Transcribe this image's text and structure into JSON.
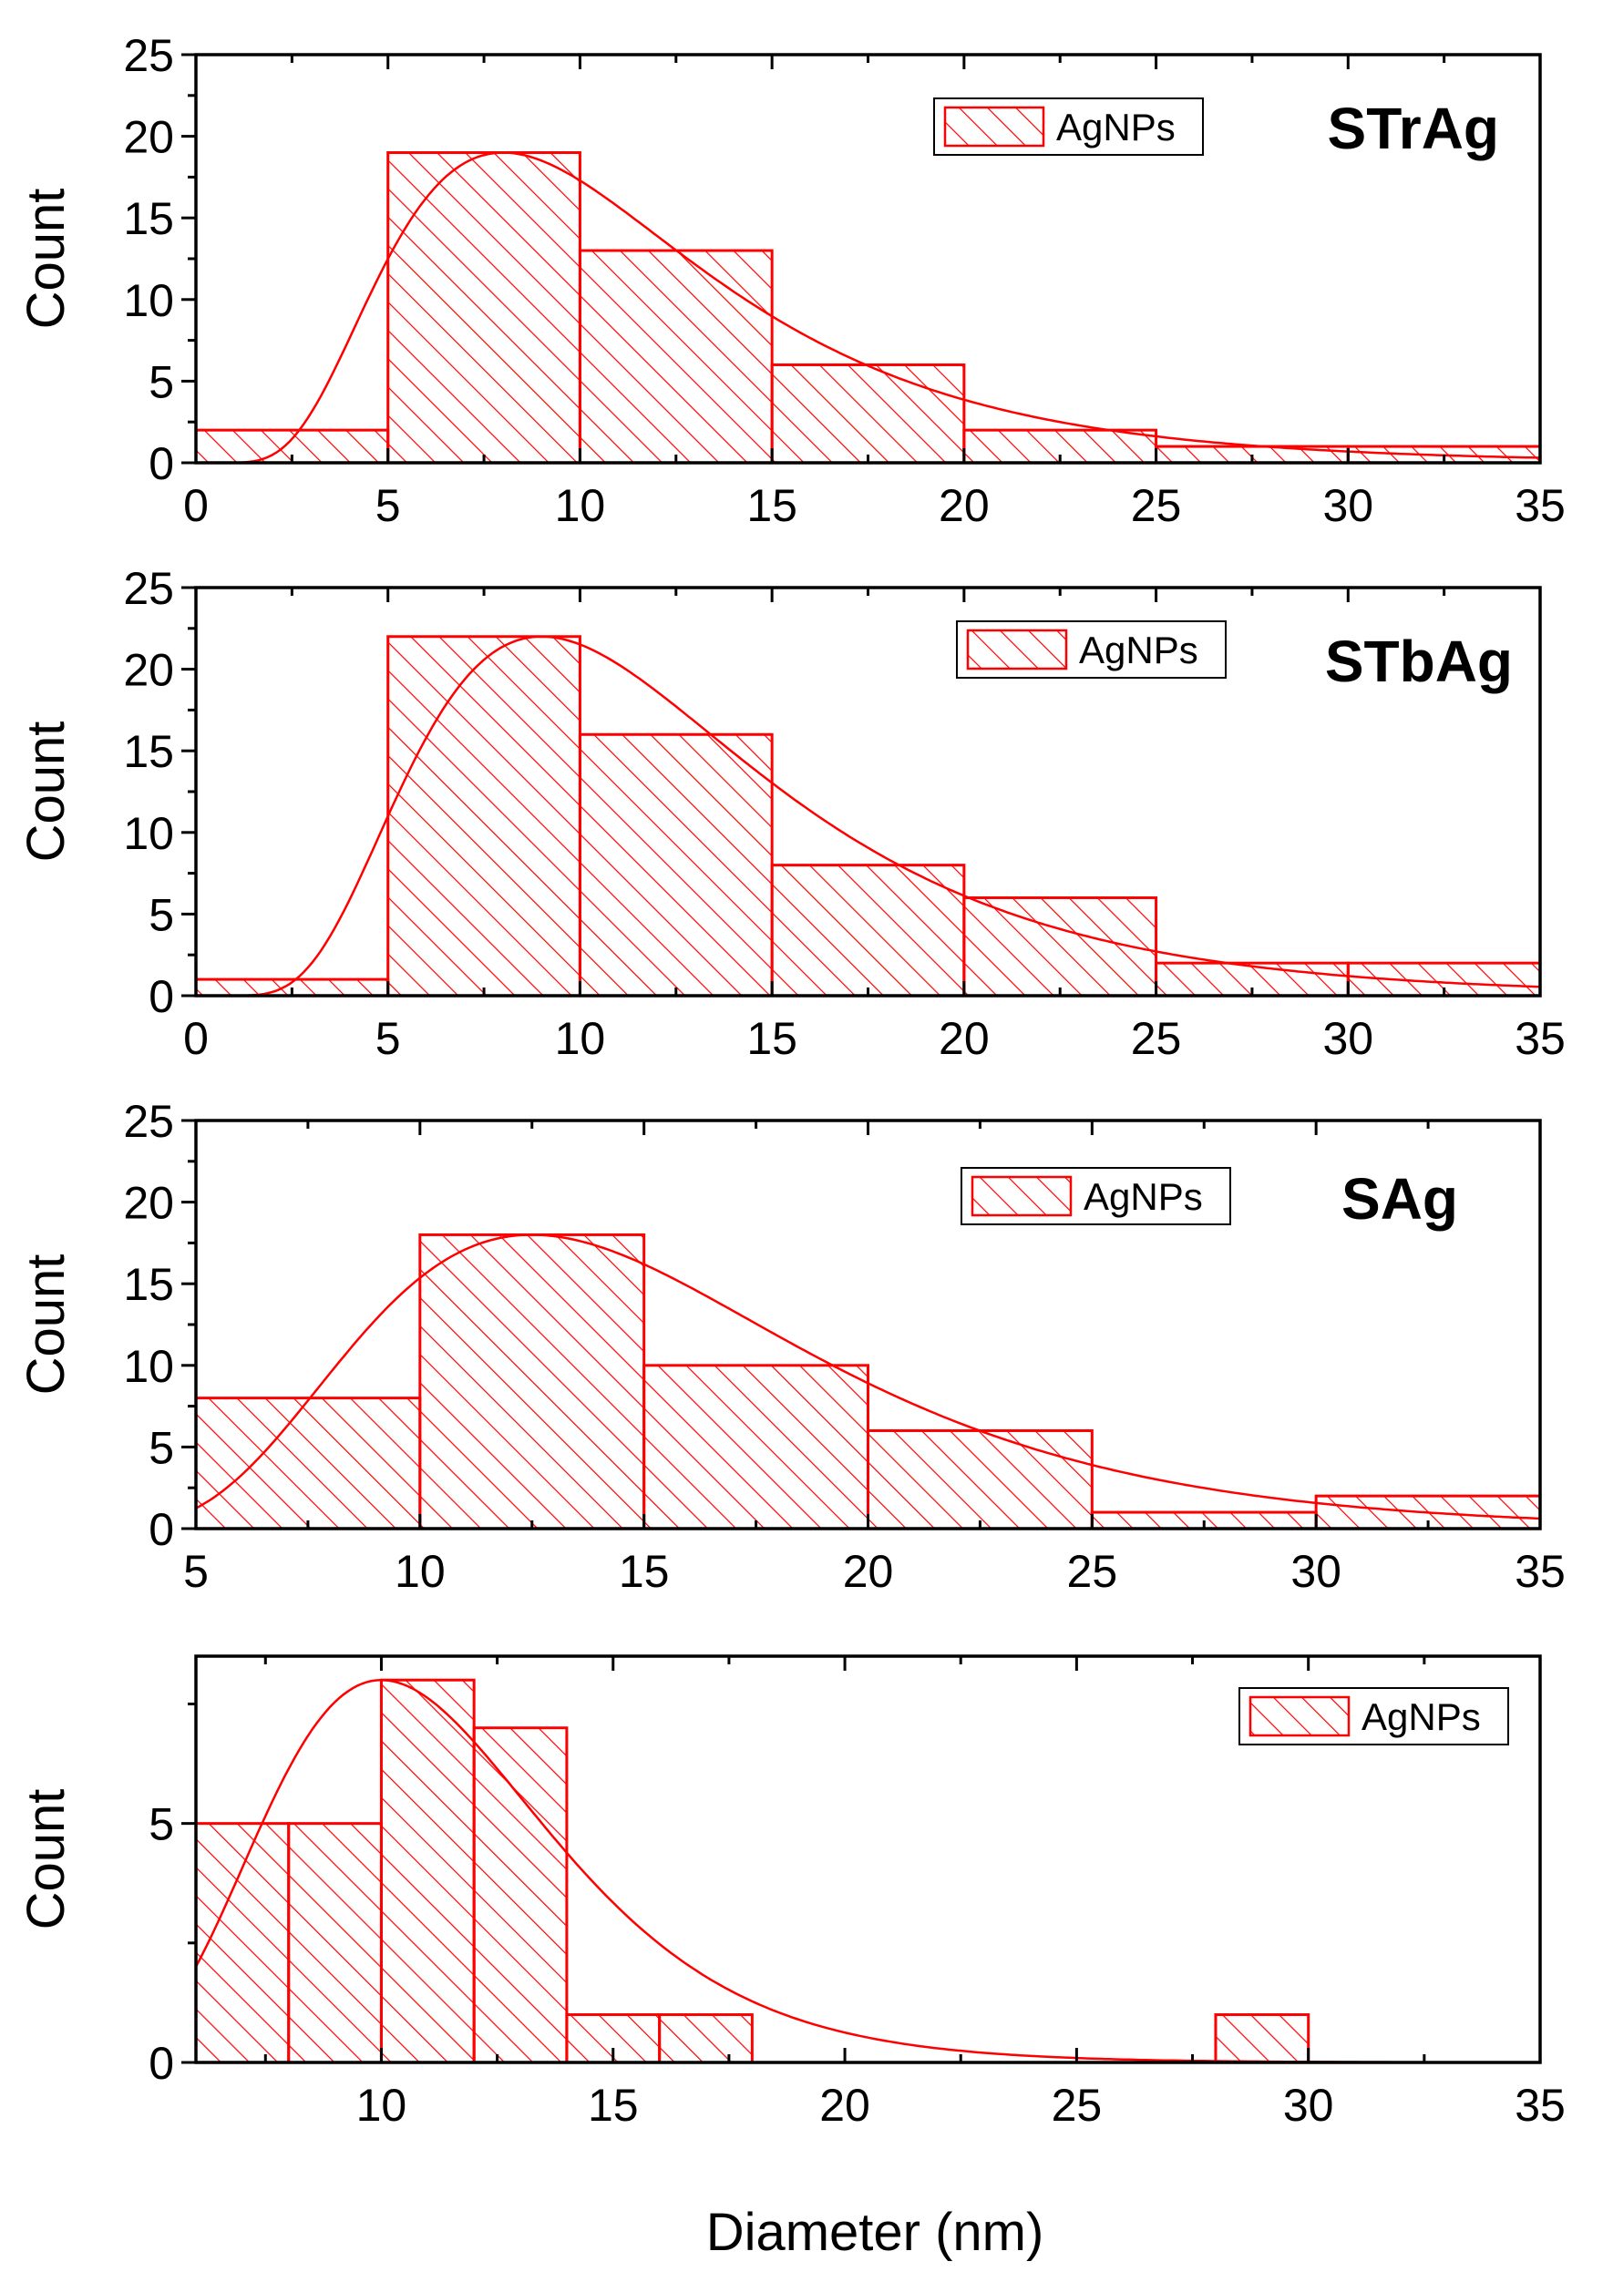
{
  "figure": {
    "xlabel": "Diameter (nm)"
  },
  "chart_data": [
    {
      "type": "bar",
      "title": "STrAg",
      "legend": "AgNPs",
      "legend_position": "top-right",
      "xlabel": "",
      "ylabel": "Count",
      "xlim": [
        0,
        35
      ],
      "ylim": [
        0,
        25
      ],
      "x_ticks": [
        0,
        5,
        10,
        15,
        20,
        25,
        30,
        35
      ],
      "y_ticks": [
        0,
        5,
        10,
        15,
        20,
        25
      ],
      "bins": [
        [
          0,
          5
        ],
        [
          5,
          10
        ],
        [
          10,
          15
        ],
        [
          15,
          20
        ],
        [
          20,
          25
        ],
        [
          25,
          30
        ],
        [
          30,
          35
        ]
      ],
      "values": [
        2,
        19,
        13,
        6,
        2,
        1,
        1
      ],
      "fit": {
        "type": "lognormal",
        "peak_x": 8,
        "peak_y": 19
      }
    },
    {
      "type": "bar",
      "title": "STbAg",
      "legend": "AgNPs",
      "legend_position": "top-right",
      "xlabel": "",
      "ylabel": "Count",
      "xlim": [
        0,
        35
      ],
      "ylim": [
        0,
        25
      ],
      "x_ticks": [
        0,
        5,
        10,
        15,
        20,
        25,
        30,
        35
      ],
      "y_ticks": [
        0,
        5,
        10,
        15,
        20,
        25
      ],
      "bins": [
        [
          0,
          5
        ],
        [
          5,
          10
        ],
        [
          10,
          15
        ],
        [
          15,
          20
        ],
        [
          20,
          25
        ],
        [
          25,
          30
        ],
        [
          30,
          35
        ]
      ],
      "values": [
        1,
        22,
        16,
        8,
        6,
        2,
        2
      ],
      "fit": {
        "type": "lognormal",
        "peak_x": 9,
        "peak_y": 22
      }
    },
    {
      "type": "bar",
      "title": "SAg",
      "legend": "AgNPs",
      "legend_position": "top-right",
      "xlabel": "",
      "ylabel": "Count",
      "xlim": [
        5,
        35
      ],
      "ylim": [
        0,
        25
      ],
      "x_ticks": [
        5,
        10,
        15,
        20,
        25,
        30,
        35
      ],
      "y_ticks": [
        0,
        5,
        10,
        15,
        20,
        25
      ],
      "bins": [
        [
          5,
          10
        ],
        [
          10,
          15
        ],
        [
          15,
          20
        ],
        [
          20,
          25
        ],
        [
          25,
          30
        ],
        [
          30,
          35
        ]
      ],
      "values": [
        8,
        18,
        10,
        6,
        1,
        2
      ],
      "fit": {
        "type": "lognormal",
        "peak_x": 12.5,
        "peak_y": 18
      }
    },
    {
      "type": "bar",
      "title": "",
      "legend": "AgNPs",
      "legend_position": "top-right",
      "xlabel": "Diameter (nm)",
      "ylabel": "Count",
      "xlim": [
        6,
        35
      ],
      "ylim": [
        0,
        8.5
      ],
      "x_ticks": [
        10,
        15,
        20,
        25,
        30,
        35
      ],
      "y_ticks": [
        0,
        5
      ],
      "bins": [
        [
          6,
          8
        ],
        [
          8,
          10
        ],
        [
          10,
          12
        ],
        [
          12,
          14
        ],
        [
          14,
          16
        ],
        [
          16,
          18
        ],
        [
          28,
          30
        ]
      ],
      "values": [
        5,
        5,
        8,
        7,
        1,
        1,
        1
      ],
      "fit": {
        "type": "lognormal",
        "peak_x": 10,
        "peak_y": 8
      }
    }
  ],
  "style": {
    "accent": "#ff0000",
    "axis": "#000000",
    "background": "#ffffff"
  }
}
